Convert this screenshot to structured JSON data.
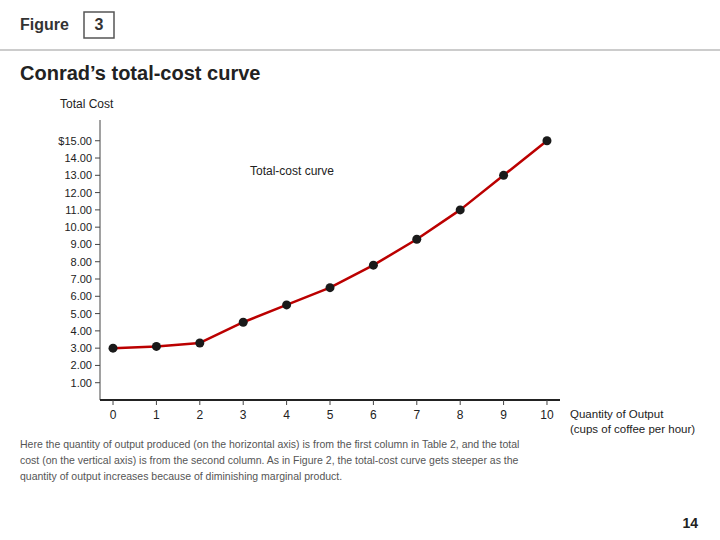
{
  "chart_data": {
    "type": "line",
    "figure_label": "Figure",
    "figure_number": "3",
    "title": "Conrad’s total-cost curve",
    "y_label": "Total Cost",
    "x_label": [
      "Quantity of Output",
      "(cups of coffee per hour)"
    ],
    "annotation": "Total-cost curve",
    "x": [
      0,
      1,
      2,
      3,
      4,
      5,
      6,
      7,
      8,
      9,
      10
    ],
    "series": [
      {
        "values": [
          3.0,
          3.1,
          3.3,
          4.5,
          5.5,
          6.5,
          7.8,
          9.3,
          11.0,
          13.0,
          15.0
        ],
        "color": "#bb0000",
        "marker": "circle",
        "line_style": "solid"
      }
    ],
    "xlim": [
      -0.3,
      10.3
    ],
    "xticks": [
      0,
      1,
      2,
      3,
      4,
      5,
      6,
      7,
      8,
      9,
      10
    ],
    "ylim": [
      0,
      16.2
    ],
    "yticks": [
      {
        "value": 1,
        "label": "1.00"
      },
      {
        "value": 2,
        "label": "2.00"
      },
      {
        "value": 3,
        "label": "3.00"
      },
      {
        "value": 4,
        "label": "4.00"
      },
      {
        "value": 5,
        "label": "5.00"
      },
      {
        "value": 6,
        "label": "6.00"
      },
      {
        "value": 7,
        "label": "7.00"
      },
      {
        "value": 8,
        "label": "8.00"
      },
      {
        "value": 9,
        "label": "9.00"
      },
      {
        "value": 10,
        "label": "10.00"
      },
      {
        "value": 11,
        "label": "11.00"
      },
      {
        "value": 12,
        "label": "12.00"
      },
      {
        "value": 13,
        "label": "13.00"
      },
      {
        "value": 14,
        "label": "14.00"
      },
      {
        "value": 15,
        "label": "$15.00"
      }
    ],
    "grid": false,
    "footnote": "Here the quantity of output produced (on the horizontal axis) is from the first column in Table 2, and the total\ncost (on the vertical axis) is from the second column. As in Figure 2, the total-cost curve gets steeper as the\nquantity of output increases because of diminishing marginal product.",
    "page_number": "14"
  }
}
